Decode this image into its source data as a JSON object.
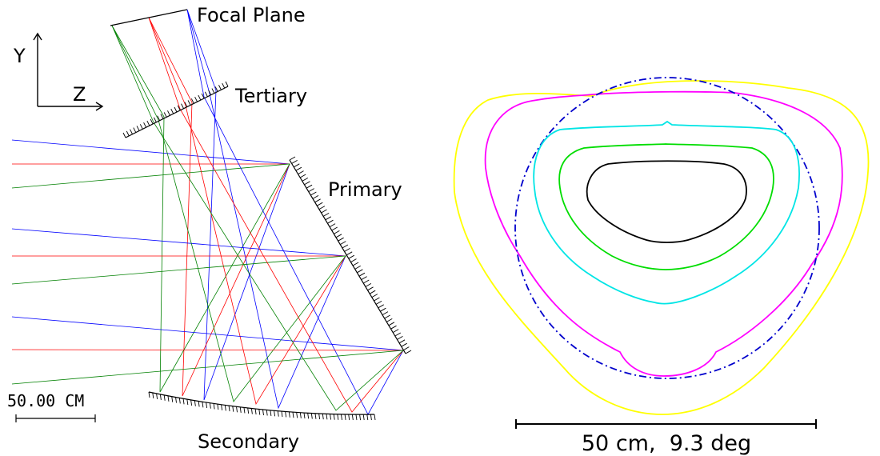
{
  "left_panel": {
    "labels": {
      "focal_plane": "Focal Plane",
      "tertiary": "Tertiary",
      "primary": "Primary",
      "secondary": "Secondary"
    },
    "axes": {
      "y": "Y",
      "z": "Z"
    },
    "scale": {
      "label": "50.00 CM"
    },
    "ray_colors": {
      "blue": "#0000ff",
      "red": "#ff0000",
      "green": "#008000"
    }
  },
  "right_panel": {
    "scale": {
      "label": "50 cm,  9.3 deg"
    },
    "contour_colors": [
      "#000000",
      "#00dd00",
      "#00e5e5",
      "#ff00ff",
      "#ffff00"
    ],
    "circle_color": "#0000cc"
  }
}
